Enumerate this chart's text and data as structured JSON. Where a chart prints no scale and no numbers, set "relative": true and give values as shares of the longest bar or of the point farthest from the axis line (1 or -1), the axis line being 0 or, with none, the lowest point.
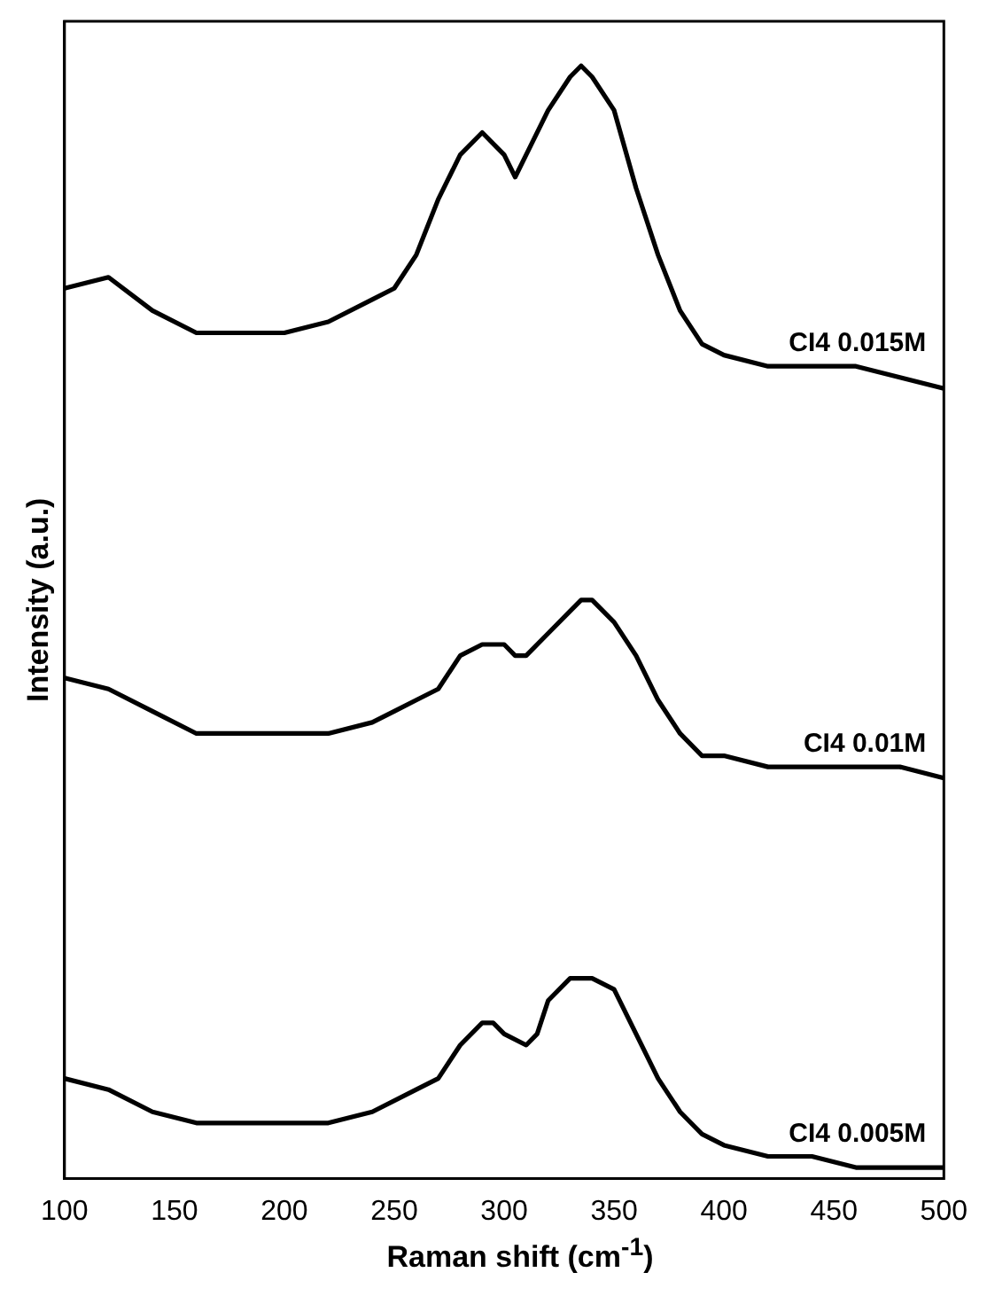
{
  "chart_data": {
    "type": "line",
    "relative": true,
    "xlabel": "Raman shift (cm$^{-1}$)",
    "ylabel": "Intensity (a.u.)",
    "xlim": [
      100,
      500
    ],
    "xticks": [
      100,
      150,
      200,
      250,
      300,
      350,
      400,
      450,
      500
    ],
    "legend": false,
    "grid": false,
    "marker": "none",
    "line_style": "solid",
    "series": [
      {
        "name": "CI4 0.015M",
        "color": "#000000",
        "x": [
          100,
          120,
          140,
          160,
          180,
          200,
          220,
          240,
          250,
          260,
          270,
          280,
          290,
          300,
          305,
          310,
          320,
          330,
          335,
          340,
          350,
          360,
          370,
          380,
          390,
          400,
          420,
          440,
          460,
          480,
          500
        ],
        "values": [
          0.8,
          0.81,
          0.78,
          0.76,
          0.76,
          0.76,
          0.77,
          0.79,
          0.8,
          0.83,
          0.88,
          0.92,
          0.94,
          0.92,
          0.9,
          0.92,
          0.96,
          0.99,
          1.0,
          0.99,
          0.96,
          0.89,
          0.83,
          0.78,
          0.75,
          0.74,
          0.73,
          0.73,
          0.73,
          0.72,
          0.71
        ]
      },
      {
        "name": "CI4 0.01M",
        "color": "#000000",
        "x": [
          100,
          120,
          140,
          160,
          180,
          200,
          220,
          240,
          250,
          260,
          270,
          280,
          290,
          300,
          305,
          310,
          320,
          330,
          335,
          340,
          350,
          360,
          370,
          380,
          390,
          400,
          420,
          440,
          460,
          480,
          500
        ],
        "values": [
          0.45,
          0.44,
          0.42,
          0.4,
          0.4,
          0.4,
          0.4,
          0.41,
          0.42,
          0.43,
          0.44,
          0.47,
          0.48,
          0.48,
          0.47,
          0.47,
          0.49,
          0.51,
          0.52,
          0.52,
          0.5,
          0.47,
          0.43,
          0.4,
          0.38,
          0.38,
          0.37,
          0.37,
          0.37,
          0.37,
          0.36
        ]
      },
      {
        "name": "CI4 0.005M",
        "color": "#000000",
        "x": [
          100,
          120,
          140,
          160,
          180,
          200,
          220,
          240,
          260,
          270,
          280,
          290,
          295,
          300,
          310,
          315,
          320,
          330,
          340,
          350,
          360,
          370,
          380,
          390,
          400,
          420,
          440,
          460,
          480,
          500
        ],
        "values": [
          0.09,
          0.08,
          0.06,
          0.05,
          0.05,
          0.05,
          0.05,
          0.06,
          0.08,
          0.09,
          0.12,
          0.14,
          0.14,
          0.13,
          0.12,
          0.13,
          0.16,
          0.18,
          0.18,
          0.17,
          0.13,
          0.09,
          0.06,
          0.04,
          0.03,
          0.02,
          0.02,
          0.01,
          0.01,
          0.01
        ]
      }
    ]
  }
}
